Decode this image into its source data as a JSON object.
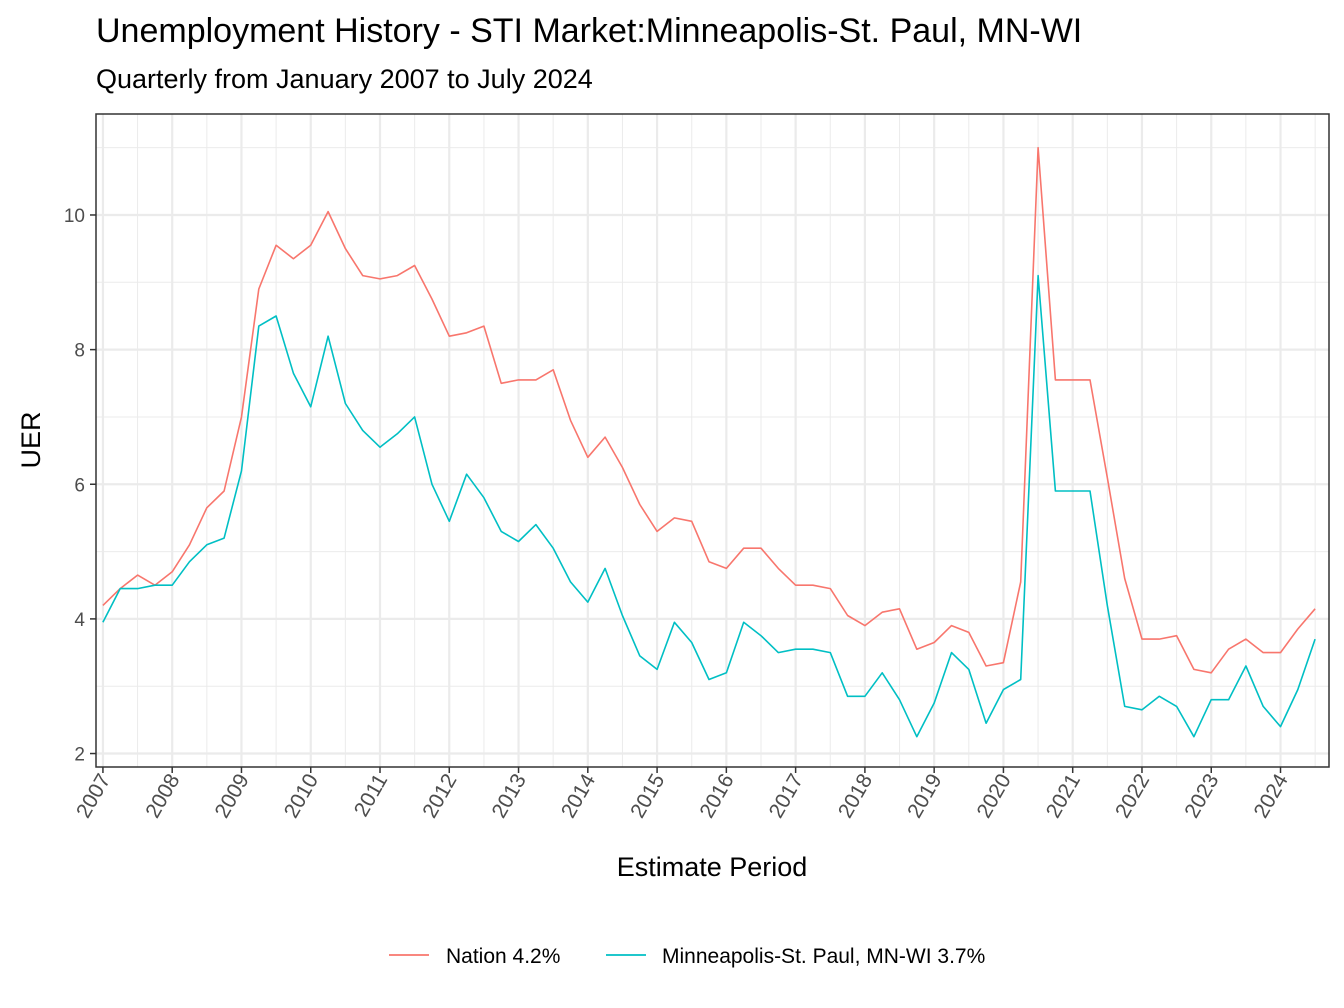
{
  "title": "Unemployment History - STI Market:Minneapolis-St. Paul, MN-WI",
  "subtitle": "Quarterly from January 2007 to July 2024",
  "chart_data": {
    "type": "line",
    "xlabel": "Estimate Period",
    "ylabel": "UER",
    "xlim": [
      2006.9,
      2024.7
    ],
    "ylim": [
      1.8,
      11.5
    ],
    "x_ticks": [
      2007,
      2008,
      2009,
      2010,
      2011,
      2012,
      2013,
      2014,
      2015,
      2016,
      2017,
      2018,
      2019,
      2020,
      2021,
      2022,
      2023,
      2024
    ],
    "y_ticks": [
      2,
      4,
      6,
      8,
      10
    ],
    "grid": true,
    "legend_position": "bottom",
    "x": [
      2007.0,
      2007.25,
      2007.5,
      2007.75,
      2008.0,
      2008.25,
      2008.5,
      2008.75,
      2009.0,
      2009.25,
      2009.5,
      2009.75,
      2010.0,
      2010.25,
      2010.5,
      2010.75,
      2011.0,
      2011.25,
      2011.5,
      2011.75,
      2012.0,
      2012.25,
      2012.5,
      2012.75,
      2013.0,
      2013.25,
      2013.5,
      2013.75,
      2014.0,
      2014.25,
      2014.5,
      2014.75,
      2015.0,
      2015.25,
      2015.5,
      2015.75,
      2016.0,
      2016.25,
      2016.5,
      2016.75,
      2017.0,
      2017.25,
      2017.5,
      2017.75,
      2018.0,
      2018.25,
      2018.5,
      2018.75,
      2019.0,
      2019.25,
      2019.5,
      2019.75,
      2020.0,
      2020.25,
      2020.5,
      2020.75,
      2021.0,
      2021.25,
      2021.5,
      2021.75,
      2022.0,
      2022.25,
      2022.5,
      2022.75,
      2023.0,
      2023.25,
      2023.5,
      2023.75,
      2024.0,
      2024.25,
      2024.5
    ],
    "series": [
      {
        "name": "Nation 4.2%",
        "color": "#F8766D",
        "values": [
          4.2,
          4.45,
          4.65,
          4.5,
          4.7,
          5.1,
          5.65,
          5.9,
          7.0,
          8.9,
          9.55,
          9.35,
          9.55,
          10.05,
          9.5,
          9.1,
          9.05,
          9.1,
          9.25,
          8.75,
          8.2,
          8.25,
          8.35,
          7.5,
          7.55,
          7.55,
          7.7,
          6.95,
          6.4,
          6.7,
          6.25,
          5.7,
          5.3,
          5.5,
          5.45,
          4.85,
          4.75,
          5.05,
          5.05,
          4.75,
          4.5,
          4.5,
          4.45,
          4.05,
          3.9,
          4.1,
          4.15,
          3.55,
          3.65,
          3.9,
          3.8,
          3.3,
          3.35,
          4.55,
          11.0,
          7.55,
          7.55,
          7.55,
          6.1,
          4.6,
          3.7,
          3.7,
          3.75,
          3.25,
          3.2,
          3.55,
          3.7,
          3.5,
          3.5,
          3.85,
          4.15
        ]
      },
      {
        "name": "Minneapolis-St. Paul, MN-WI 3.7%",
        "color": "#00BFC4",
        "values": [
          3.95,
          4.45,
          4.45,
          4.5,
          4.5,
          4.85,
          5.1,
          5.2,
          6.2,
          8.35,
          8.5,
          7.65,
          7.15,
          8.2,
          7.2,
          6.8,
          6.55,
          6.75,
          7.0,
          6.0,
          5.45,
          6.15,
          5.8,
          5.3,
          5.15,
          5.4,
          5.05,
          4.55,
          4.25,
          4.75,
          4.05,
          3.45,
          3.25,
          3.95,
          3.65,
          3.1,
          3.2,
          3.95,
          3.75,
          3.5,
          3.55,
          3.55,
          3.5,
          2.85,
          2.85,
          3.2,
          2.8,
          2.25,
          2.75,
          3.5,
          3.25,
          2.45,
          2.95,
          3.1,
          9.1,
          5.9,
          5.9,
          5.9,
          4.2,
          2.7,
          2.65,
          2.85,
          2.7,
          2.25,
          2.8,
          2.8,
          3.3,
          2.7,
          2.4,
          2.95,
          3.7
        ]
      }
    ]
  }
}
